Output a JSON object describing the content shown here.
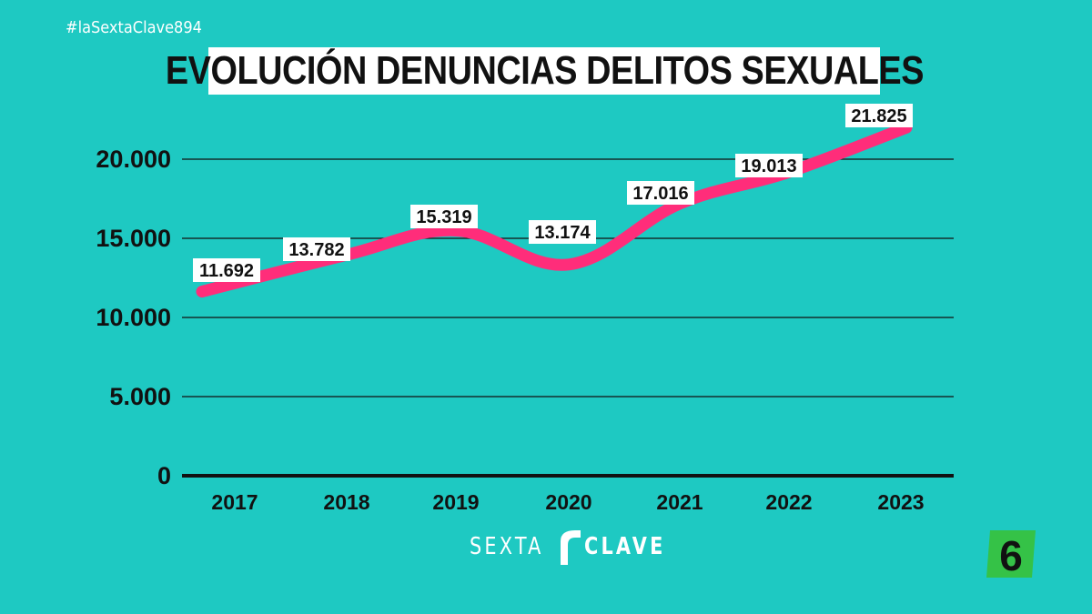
{
  "header": {
    "hashtag": "#laSextaClave894"
  },
  "branding": {
    "program_logo_left": "SEXTA",
    "program_logo_right": "CLAVE",
    "channel_logo_text": "6",
    "accent_color": "#ff2d7a",
    "background_color": "#1ec9c2",
    "channel_logo_color": "#35c247"
  },
  "chart_data": {
    "type": "line",
    "title": "EVOLUCIÓN DENUNCIAS DELITOS SEXUALES",
    "categories": [
      "2017",
      "2018",
      "2019",
      "2020",
      "2021",
      "2022",
      "2023"
    ],
    "series": [
      {
        "values": [
          11692,
          13782,
          15319,
          13174,
          17016,
          19013,
          21825
        ],
        "labels": [
          "11.692",
          "13.782",
          "15.319",
          "13.174",
          "17.016",
          "19.013",
          "21.825"
        ]
      }
    ],
    "yticks": [
      {
        "value": 0,
        "label": "0"
      },
      {
        "value": 5000,
        "label": "5.000"
      },
      {
        "value": 10000,
        "label": "10.000"
      },
      {
        "value": 15000,
        "label": "15.000"
      },
      {
        "value": 20000,
        "label": "20.000"
      }
    ],
    "ylim": [
      0,
      20000
    ],
    "grid": true,
    "xlabel": "",
    "ylabel": "",
    "line_color": "#ff2d7a"
  }
}
